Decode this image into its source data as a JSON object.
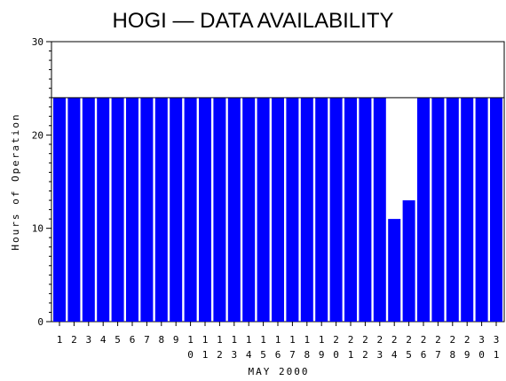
{
  "chart_data": {
    "type": "bar",
    "title": "HOGI — DATA AVAILABILITY",
    "xlabel": "MAY 2000",
    "ylabel": "Hours of Operation",
    "ylim": [
      0,
      30
    ],
    "yticks": [
      0,
      10,
      20,
      30
    ],
    "categories": [
      "1",
      "2",
      "3",
      "4",
      "5",
      "6",
      "7",
      "8",
      "9",
      "10",
      "11",
      "12",
      "13",
      "14",
      "15",
      "16",
      "17",
      "18",
      "19",
      "20",
      "21",
      "22",
      "23",
      "24",
      "25",
      "26",
      "27",
      "28",
      "29",
      "30",
      "31"
    ],
    "values": [
      24,
      24,
      24,
      24,
      24,
      24,
      24,
      24,
      24,
      24,
      24,
      24,
      24,
      24,
      24,
      24,
      24,
      24,
      24,
      24,
      24,
      24,
      24,
      11,
      13,
      24,
      24,
      24,
      24,
      24,
      24
    ],
    "reference_line": 24,
    "grid": false,
    "bar_color": "#0000ff"
  }
}
